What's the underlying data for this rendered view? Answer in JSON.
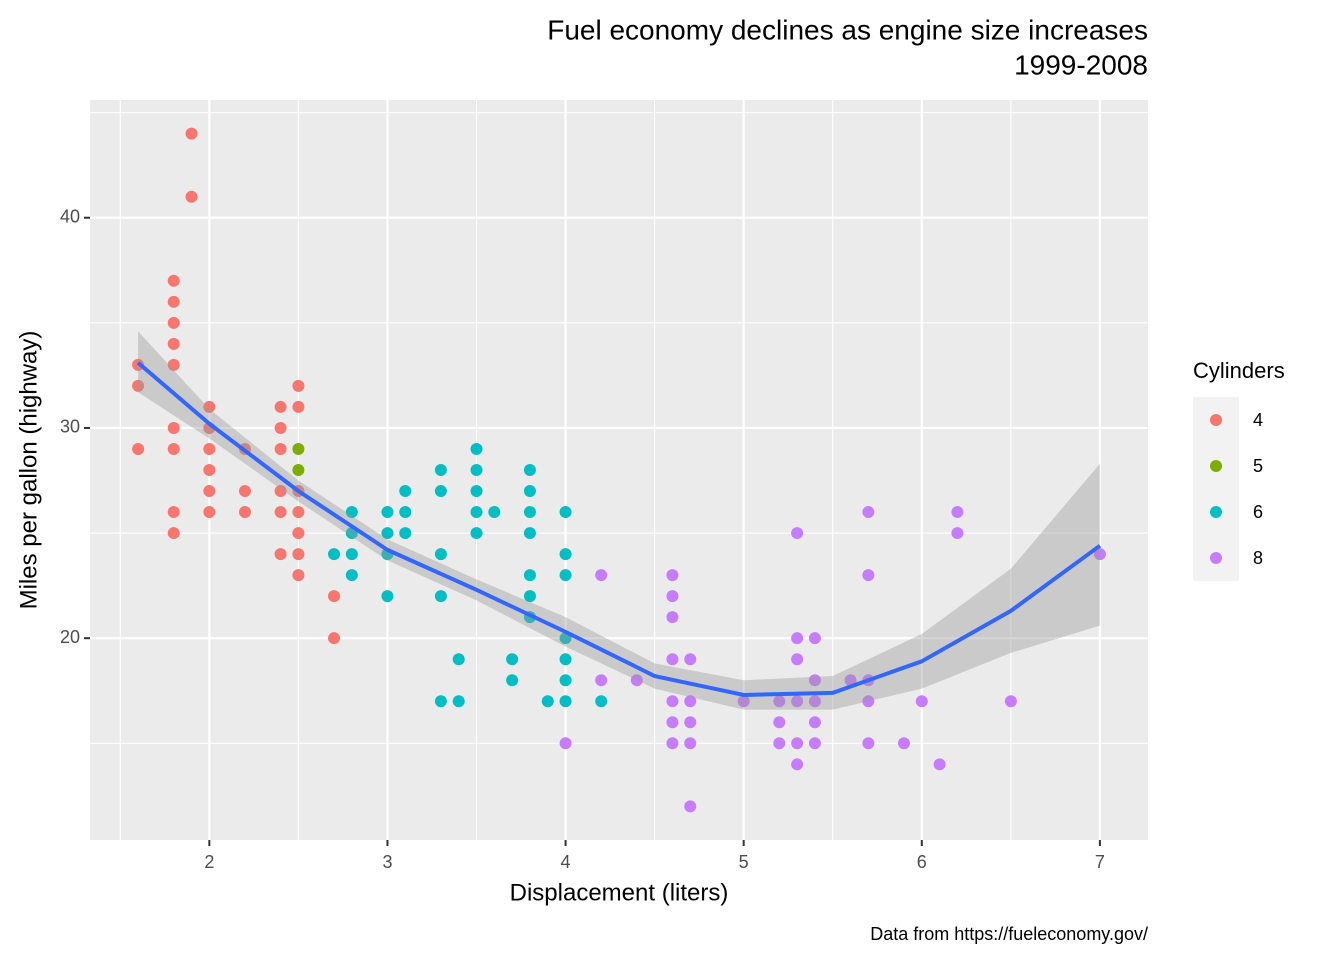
{
  "chart_data": {
    "type": "scatter",
    "title": "Fuel economy declines as engine size increases",
    "subtitle": "1999-2008",
    "caption": "Data from https://fueleconomy.gov/",
    "x_label": "Displacement (liters)",
    "y_label": "Miles per gallon (highway)",
    "legend_title": "Cylinders",
    "xlim": [
      1.33,
      7.27
    ],
    "xticks": [
      2,
      3,
      4,
      5,
      6,
      7
    ],
    "ylim": [
      10.4,
      45.6
    ],
    "yticks": [
      20,
      30,
      40
    ],
    "grid": true,
    "series": [
      {
        "name": "4",
        "color": "#F8766D",
        "x": [
          1.6,
          1.6,
          1.6,
          1.8,
          1.8,
          1.8,
          1.8,
          1.8,
          1.8,
          1.8,
          1.8,
          1.8,
          1.9,
          1.9,
          2.0,
          2.0,
          2.0,
          2.0,
          2.0,
          2.0,
          2.2,
          2.2,
          2.2,
          2.4,
          2.4,
          2.4,
          2.4,
          2.4,
          2.4,
          2.5,
          2.5,
          2.5,
          2.5,
          2.5,
          2.5,
          2.5,
          2.7,
          2.7
        ],
        "values": [
          33,
          32,
          29,
          37,
          36,
          35,
          34,
          33,
          30,
          29,
          26,
          25,
          44,
          41,
          31,
          30,
          29,
          28,
          27,
          26,
          29,
          27,
          26,
          31,
          30,
          29,
          27,
          26,
          24,
          32,
          31,
          27,
          26,
          25,
          24,
          23,
          22,
          20
        ]
      },
      {
        "name": "5",
        "color": "#7CAE00",
        "x": [
          2.5,
          2.5
        ],
        "values": [
          29,
          28
        ]
      },
      {
        "name": "6",
        "color": "#00BFC4",
        "x": [
          2.7,
          2.8,
          2.8,
          2.8,
          2.8,
          3.0,
          3.0,
          3.0,
          3.0,
          3.1,
          3.1,
          3.1,
          3.3,
          3.3,
          3.3,
          3.3,
          3.3,
          3.4,
          3.4,
          3.5,
          3.5,
          3.5,
          3.5,
          3.5,
          3.6,
          3.7,
          3.7,
          3.8,
          3.8,
          3.8,
          3.8,
          3.8,
          3.8,
          3.8,
          3.9,
          4.0,
          4.0,
          4.0,
          4.0,
          4.0,
          4.0,
          4.0,
          4.2
        ],
        "values": [
          24,
          26,
          25,
          24,
          23,
          26,
          25,
          24,
          22,
          27,
          26,
          25,
          28,
          27,
          24,
          22,
          17,
          19,
          17,
          29,
          28,
          27,
          26,
          25,
          26,
          19,
          18,
          28,
          27,
          26,
          25,
          23,
          22,
          21,
          17,
          26,
          24,
          23,
          20,
          19,
          18,
          17,
          17
        ]
      },
      {
        "name": "8",
        "color": "#C77CFF",
        "x": [
          4.0,
          4.2,
          4.2,
          4.4,
          4.6,
          4.6,
          4.6,
          4.6,
          4.6,
          4.6,
          4.6,
          4.7,
          4.7,
          4.7,
          4.7,
          4.7,
          5.0,
          5.2,
          5.2,
          5.2,
          5.3,
          5.3,
          5.3,
          5.3,
          5.3,
          5.3,
          5.4,
          5.4,
          5.4,
          5.4,
          5.4,
          5.6,
          5.7,
          5.7,
          5.7,
          5.7,
          5.7,
          5.9,
          6.0,
          6.1,
          6.2,
          6.2,
          6.5,
          7.0
        ],
        "values": [
          15,
          23,
          18,
          18,
          23,
          22,
          21,
          19,
          17,
          16,
          15,
          19,
          17,
          16,
          15,
          12,
          17,
          17,
          16,
          15,
          25,
          20,
          19,
          17,
          15,
          14,
          20,
          18,
          17,
          16,
          15,
          18,
          26,
          23,
          18,
          17,
          15,
          15,
          17,
          14,
          26,
          25,
          17,
          24
        ]
      }
    ],
    "smooth": {
      "color": "#3366FF",
      "x": [
        1.6,
        2.0,
        2.5,
        3.0,
        3.5,
        4.0,
        4.5,
        5.0,
        5.5,
        6.0,
        6.5,
        7.0
      ],
      "values": [
        33.1,
        30.2,
        27.0,
        24.2,
        22.3,
        20.3,
        18.2,
        17.3,
        17.4,
        18.9,
        21.3,
        24.4
      ],
      "lower": [
        31.7,
        29.5,
        26.5,
        23.7,
        21.8,
        19.6,
        17.6,
        16.6,
        16.6,
        17.6,
        19.3,
        20.6
      ],
      "upper": [
        34.6,
        30.9,
        27.5,
        24.7,
        22.8,
        21.0,
        18.8,
        18.0,
        18.2,
        20.2,
        23.3,
        28.3
      ]
    }
  }
}
